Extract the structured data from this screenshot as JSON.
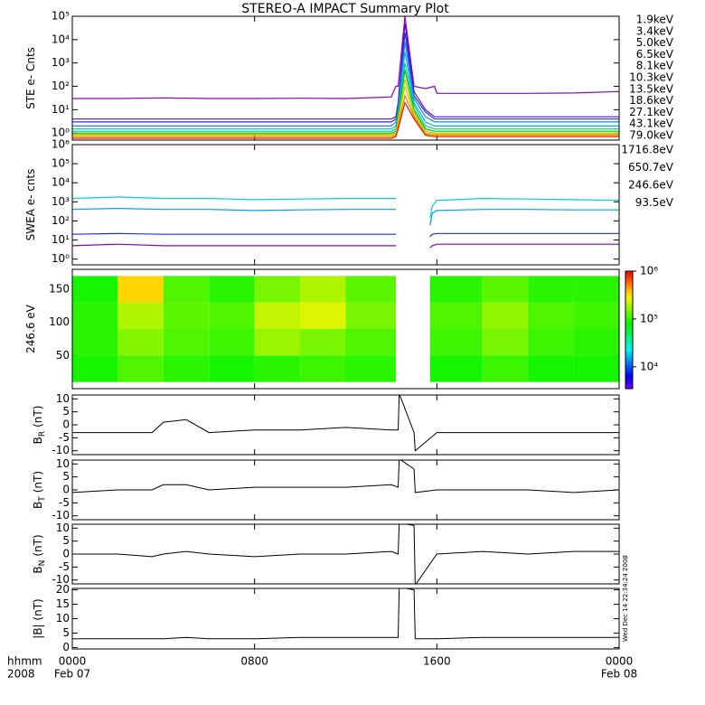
{
  "title": "STEREO-A IMPACT Summary Plot",
  "xtitle": "hhmm",
  "xyear": "2008",
  "timestamp": "Wed Dec 14 22:34:24 2008",
  "chart_data": [
    {
      "type": "line",
      "ylabel": "STE e- Cnts",
      "log": true,
      "ylim": [
        0.5,
        100000
      ],
      "yticks": [
        {
          "value": 1,
          "label": "10⁰"
        },
        {
          "value": 10,
          "label": "10¹"
        },
        {
          "value": 100,
          "label": "10²"
        },
        {
          "value": 1000,
          "label": "10³"
        },
        {
          "value": 10000,
          "label": "10⁴"
        },
        {
          "value": 100000,
          "label": "10⁵"
        }
      ],
      "x": [
        0,
        2,
        4,
        6,
        8,
        10,
        12,
        14,
        14.2,
        14.3,
        14.6,
        15,
        15.5,
        15.9,
        16,
        18,
        20,
        22,
        24
      ],
      "series": [
        {
          "name": "1.9keV",
          "color": "#8a00d0",
          "values": [
            30,
            30,
            32,
            30,
            30,
            31,
            30,
            35,
            100,
            100,
            100000,
            100,
            80,
            100,
            50,
            50,
            50,
            52,
            60
          ]
        },
        {
          "name": "3.4keV",
          "color": "#5a10c0",
          "values": [
            4,
            4,
            4,
            4,
            4,
            4,
            4,
            4,
            5,
            20,
            50000,
            60,
            10,
            5,
            5,
            5,
            5,
            5,
            5
          ]
        },
        {
          "name": "5.0keV",
          "color": "#2030e0",
          "values": [
            3,
            3,
            3,
            3,
            3,
            3,
            3,
            3,
            4,
            15,
            20000,
            40,
            8,
            4,
            4,
            4,
            4,
            4,
            4
          ]
        },
        {
          "name": "6.5keV",
          "color": "#2080f0",
          "values": [
            2,
            2,
            2,
            2,
            2,
            2,
            2,
            2,
            3,
            10,
            8000,
            30,
            5,
            3,
            3,
            3,
            3,
            3,
            3
          ]
        },
        {
          "name": "8.1keV",
          "color": "#00b0d8",
          "values": [
            1.5,
            1.5,
            1.5,
            1.5,
            1.5,
            1.5,
            1.5,
            1.5,
            2,
            8,
            3000,
            20,
            3,
            2,
            2,
            2,
            2,
            2,
            2
          ]
        },
        {
          "name": "10.3keV",
          "color": "#00c8a0",
          "values": [
            1.2,
            1.2,
            1.2,
            1.2,
            1.2,
            1.2,
            1.2,
            1.2,
            1.5,
            6,
            1000,
            15,
            2,
            1.5,
            1.5,
            1.5,
            1.5,
            1.5,
            1.5
          ]
        },
        {
          "name": "13.5keV",
          "color": "#00c000",
          "values": [
            1,
            1,
            1,
            1,
            1,
            1,
            1,
            1,
            1.2,
            5,
            500,
            10,
            1.5,
            1.2,
            1.2,
            1.2,
            1.2,
            1.2,
            1.2
          ]
        },
        {
          "name": "18.6keV",
          "color": "#a0d000",
          "values": [
            0.9,
            0.9,
            0.9,
            0.9,
            0.9,
            0.9,
            0.9,
            0.9,
            1,
            4,
            200,
            8,
            1.2,
            1,
            1,
            1,
            1,
            1,
            1
          ]
        },
        {
          "name": "27.1keV",
          "color": "#e8c000",
          "values": [
            0.8,
            0.8,
            0.8,
            0.8,
            0.8,
            0.8,
            0.8,
            0.8,
            0.9,
            3,
            100,
            6,
            1,
            0.9,
            0.9,
            0.9,
            0.9,
            0.9,
            0.9
          ]
        },
        {
          "name": "43.1keV",
          "color": "#e88000",
          "values": [
            0.7,
            0.7,
            0.7,
            0.7,
            0.7,
            0.7,
            0.7,
            0.7,
            0.8,
            2,
            40,
            5,
            0.9,
            0.8,
            0.8,
            0.8,
            0.8,
            0.8,
            0.8
          ]
        },
        {
          "name": "79.0keV",
          "color": "#e02000",
          "values": [
            0.6,
            0.6,
            0.6,
            0.6,
            0.6,
            0.6,
            0.6,
            0.6,
            0.7,
            1.5,
            20,
            4,
            0.8,
            0.7,
            0.7,
            0.7,
            0.7,
            0.7,
            0.7
          ]
        }
      ]
    },
    {
      "type": "line",
      "ylabel": "SWEA e- cnts",
      "log": true,
      "ylim": [
        0.5,
        1000000
      ],
      "yticks": [
        {
          "value": 1,
          "label": "10⁰"
        },
        {
          "value": 10,
          "label": "10¹"
        },
        {
          "value": 100,
          "label": "10²"
        },
        {
          "value": 1000,
          "label": "10³"
        },
        {
          "value": 10000,
          "label": "10⁴"
        },
        {
          "value": 100000,
          "label": "10⁵"
        },
        {
          "value": 1000000,
          "label": "10⁶"
        }
      ],
      "x": [
        0,
        2,
        4,
        6,
        8,
        10,
        12,
        14,
        14.2,
        15,
        15.7,
        15.8,
        16,
        18,
        20,
        22,
        24
      ],
      "series": [
        {
          "name": "1716.8eV",
          "color": "#8a00d0",
          "values": [
            5,
            6,
            5,
            5,
            5,
            5,
            5,
            5,
            5,
            null,
            4,
            5,
            6,
            6,
            6,
            6,
            6
          ]
        },
        {
          "name": "650.7eV",
          "color": "#2030e0",
          "values": [
            20,
            22,
            20,
            20,
            20,
            20,
            20,
            20,
            20,
            null,
            15,
            20,
            22,
            22,
            22,
            22,
            22
          ]
        },
        {
          "name": "246.6eV",
          "color": "#00a0e0",
          "values": [
            400,
            450,
            400,
            400,
            350,
            380,
            400,
            400,
            400,
            null,
            60,
            250,
            350,
            400,
            400,
            380,
            380
          ]
        },
        {
          "name": "93.5eV",
          "color": "#00d0d0",
          "values": [
            1500,
            1800,
            1500,
            1500,
            1300,
            1400,
            1500,
            1500,
            1500,
            null,
            150,
            600,
            1200,
            1500,
            1400,
            1300,
            1200
          ]
        }
      ]
    },
    {
      "type": "heatmap",
      "ylabel": "246.6 eV",
      "ylim": [
        0,
        180
      ],
      "yticks": [
        50,
        100,
        150
      ],
      "x_edges": [
        0,
        2,
        4,
        6,
        8,
        10,
        12,
        14.2,
        15.7,
        18,
        20,
        22,
        24
      ],
      "y_edges": [
        10,
        50,
        90,
        130,
        170
      ],
      "z": [
        [
          90000,
          120000,
          100000,
          90000,
          100000,
          110000,
          100000,
          null,
          90000,
          110000,
          90000,
          90000
        ],
        [
          100000,
          160000,
          120000,
          110000,
          180000,
          150000,
          120000,
          null,
          110000,
          150000,
          110000,
          100000
        ],
        [
          100000,
          200000,
          130000,
          120000,
          220000,
          250000,
          150000,
          null,
          120000,
          170000,
          120000,
          110000
        ],
        [
          90000,
          350000,
          120000,
          100000,
          150000,
          200000,
          130000,
          null,
          100000,
          130000,
          100000,
          100000
        ]
      ],
      "zlog": true,
      "zlim": [
        3500,
        1000000
      ],
      "zticks": [
        {
          "value": 10000,
          "label": "10⁴"
        },
        {
          "value": 100000,
          "label": "10⁵"
        },
        {
          "value": 1000000,
          "label": "10⁶"
        }
      ]
    },
    {
      "type": "line",
      "ylabel": "B",
      "ylabel_sub": "R",
      "ylabel_unit": "(nT)",
      "log": false,
      "ylim": [
        -11.5,
        11.5
      ],
      "yticks": [
        -10,
        -5,
        0,
        5,
        10
      ],
      "x": [
        0,
        2,
        3.5,
        4,
        5,
        6,
        8,
        10,
        12,
        14,
        14.3,
        14.35,
        15,
        15.05,
        16,
        18,
        20,
        22,
        24
      ],
      "series": [
        {
          "name": "BR",
          "color": "#000000",
          "values": [
            -3,
            -3,
            -3,
            1,
            2,
            -3,
            -2,
            -2,
            -1,
            -2,
            -2,
            12,
            -3,
            -10,
            -3,
            -3,
            -3,
            -3,
            -3
          ]
        }
      ]
    },
    {
      "type": "line",
      "ylabel": "B",
      "ylabel_sub": "T",
      "ylabel_unit": "(nT)",
      "log": false,
      "ylim": [
        -11.5,
        11.5
      ],
      "yticks": [
        -10,
        -5,
        0,
        5,
        10
      ],
      "x": [
        0,
        2,
        3.5,
        4,
        5,
        6,
        8,
        10,
        12,
        14,
        14.3,
        14.35,
        15,
        15.05,
        16,
        18,
        20,
        22,
        24
      ],
      "series": [
        {
          "name": "BT",
          "color": "#000000",
          "values": [
            -1,
            0,
            0,
            2,
            2,
            0,
            1,
            1,
            1,
            2,
            1,
            12,
            8,
            -1,
            0,
            0,
            0,
            -1,
            0
          ]
        }
      ]
    },
    {
      "type": "line",
      "ylabel": "B",
      "ylabel_sub": "N",
      "ylabel_unit": "(nT)",
      "log": false,
      "ylim": [
        -11.5,
        11.5
      ],
      "yticks": [
        -10,
        -5,
        0,
        5,
        10
      ],
      "x": [
        0,
        2,
        3.5,
        4,
        5,
        6,
        8,
        10,
        12,
        14,
        14.3,
        14.35,
        15,
        15.05,
        16,
        18,
        20,
        22,
        24
      ],
      "series": [
        {
          "name": "BN",
          "color": "#000000",
          "values": [
            0,
            0,
            -1,
            0,
            1,
            0,
            -1,
            0,
            0,
            1,
            0,
            12,
            11,
            -12,
            0,
            1,
            0,
            1,
            1
          ]
        }
      ]
    },
    {
      "type": "line",
      "ylabel": "|B| (nT)",
      "log": false,
      "ylim": [
        -0.5,
        20.5
      ],
      "yticks": [
        0,
        5,
        10,
        15,
        20
      ],
      "x": [
        0,
        2,
        3.5,
        4,
        5,
        6,
        8,
        10,
        12,
        14,
        14.3,
        14.35,
        15,
        15.05,
        16,
        18,
        20,
        22,
        24
      ],
      "series": [
        {
          "name": "B",
          "color": "#000000",
          "values": [
            3,
            3,
            3,
            3,
            3.5,
            3,
            3,
            3.5,
            3.5,
            3.5,
            3.5,
            21,
            20,
            3,
            3,
            3.5,
            3.5,
            3.5,
            3.5
          ]
        }
      ],
      "xlim": [
        0,
        24
      ],
      "xticks": [
        {
          "value": 0,
          "label": "0000"
        },
        {
          "value": 8,
          "label": "0800"
        },
        {
          "value": 16,
          "label": "1600"
        },
        {
          "value": 24,
          "label": "0000"
        }
      ],
      "xdates": [
        {
          "value": 0,
          "label": "Feb 07"
        },
        {
          "value": 24,
          "label": "Feb 08"
        }
      ]
    }
  ]
}
